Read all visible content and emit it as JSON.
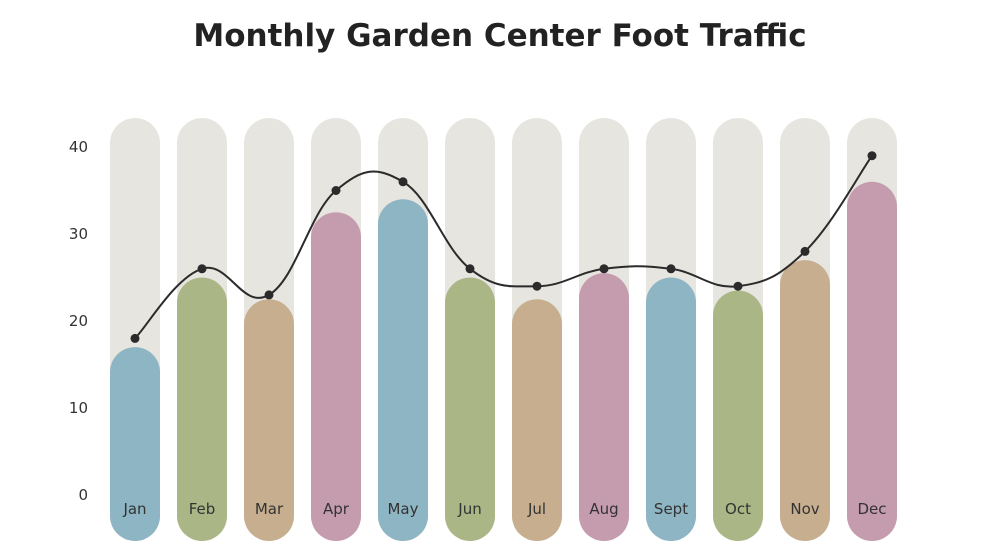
{
  "chart_data": {
    "type": "bar",
    "title": "Monthly Garden Center Foot Traffic",
    "categories": [
      "Jan",
      "Feb",
      "Mar",
      "Apr",
      "May",
      "Jun",
      "Jul",
      "Aug",
      "Sept",
      "Oct",
      "Nov",
      "Dec"
    ],
    "values": [
      17,
      25,
      22.5,
      32.5,
      34,
      25,
      22.5,
      25.5,
      25,
      23.5,
      27,
      36
    ],
    "line_values": [
      18,
      26,
      23,
      35,
      36,
      26,
      24,
      26,
      26,
      24,
      28,
      39
    ],
    "ylim": [
      0,
      42
    ],
    "yticks": [
      0,
      10,
      20,
      30,
      40
    ],
    "xlabel": "",
    "ylabel": "",
    "grid": false,
    "bar_colors": [
      "#8db5c3",
      "#aab685",
      "#c6ae8f",
      "#c59cae",
      "#8db5c3",
      "#aab685",
      "#c6ae8f",
      "#c59cae",
      "#8db5c3",
      "#aab685",
      "#c6ae8f",
      "#c59cae"
    ],
    "track_color": "#e7e5df",
    "line_color": "#2b2b2b"
  }
}
